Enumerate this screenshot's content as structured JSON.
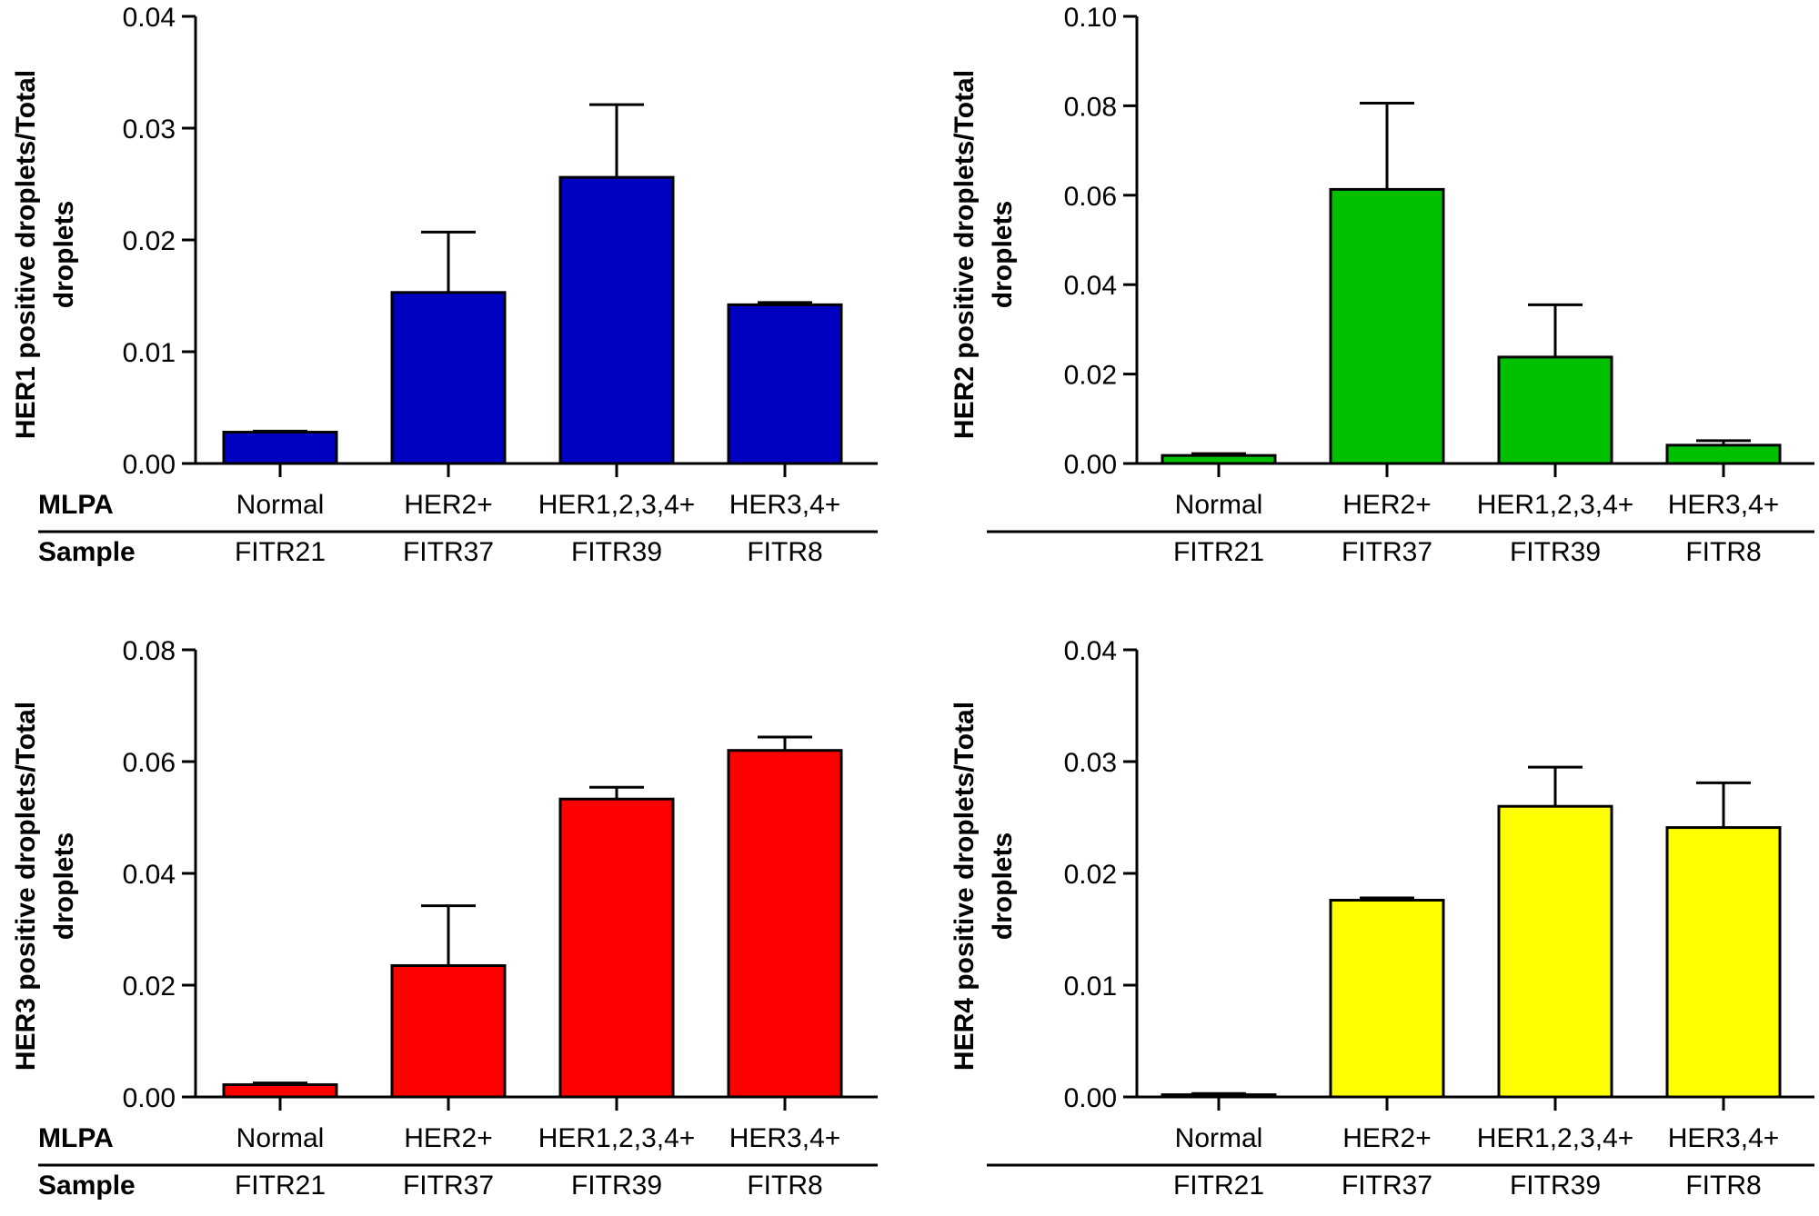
{
  "row_labels": {
    "mlpa": "MLPA",
    "sample": "Sample"
  },
  "chart_data": [
    {
      "type": "bar",
      "ylabel_lines": [
        "HER1 positive droplets/Total",
        "droplets"
      ],
      "ylim": [
        0,
        0.04
      ],
      "yticks": [
        "0.00",
        "0.01",
        "0.02",
        "0.03",
        "0.04"
      ],
      "categories": [
        "Normal",
        "HER2+",
        "HER1,2,3,4+",
        "HER3,4+"
      ],
      "samples": [
        "FITR21",
        "FITR37",
        "FITR39",
        "FITR8"
      ],
      "values": [
        0.0028,
        0.0153,
        0.0256,
        0.0142
      ],
      "errors": [
        0.0001,
        0.0054,
        0.0065,
        0.0002
      ],
      "color": "#0000c0",
      "legend": "none",
      "grid": false
    },
    {
      "type": "bar",
      "ylabel_lines": [
        "HER2 positive droplets/Total",
        "droplets"
      ],
      "ylim": [
        0,
        0.1
      ],
      "yticks": [
        "0.00",
        "0.02",
        "0.04",
        "0.06",
        "0.08",
        "0.10"
      ],
      "categories": [
        "Normal",
        "HER2+",
        "HER1,2,3,4+",
        "HER3,4+"
      ],
      "samples": [
        "FITR21",
        "FITR37",
        "FITR39",
        "FITR8"
      ],
      "values": [
        0.0018,
        0.0613,
        0.0238,
        0.0041
      ],
      "errors": [
        0.0004,
        0.0193,
        0.0117,
        0.001
      ],
      "color": "#00c000",
      "legend": "none",
      "grid": false
    },
    {
      "type": "bar",
      "ylabel_lines": [
        "HER3 positive droplets/Total",
        "droplets"
      ],
      "ylim": [
        0,
        0.08
      ],
      "yticks": [
        "0.00",
        "0.02",
        "0.04",
        "0.06",
        "0.08"
      ],
      "categories": [
        "Normal",
        "HER2+",
        "HER1,2,3,4+",
        "HER3,4+"
      ],
      "samples": [
        "FITR21",
        "FITR37",
        "FITR39",
        "FITR8"
      ],
      "values": [
        0.0022,
        0.0235,
        0.0533,
        0.062
      ],
      "errors": [
        0.0003,
        0.0107,
        0.0021,
        0.0024
      ],
      "color": "#ff0000",
      "legend": "none",
      "grid": false
    },
    {
      "type": "bar",
      "ylabel_lines": [
        "HER4 positive droplets/Total",
        "droplets"
      ],
      "ylim": [
        0,
        0.04
      ],
      "yticks": [
        "0.00",
        "0.01",
        "0.02",
        "0.03",
        "0.04"
      ],
      "categories": [
        "Normal",
        "HER2+",
        "HER1,2,3,4+",
        "HER3,4+"
      ],
      "samples": [
        "FITR21",
        "FITR37",
        "FITR39",
        "FITR8"
      ],
      "values": [
        0.0002,
        0.0176,
        0.026,
        0.0241
      ],
      "errors": [
        0.0001,
        0.0002,
        0.0035,
        0.004
      ],
      "color": "#ffff00",
      "legend": "none",
      "grid": false
    }
  ]
}
